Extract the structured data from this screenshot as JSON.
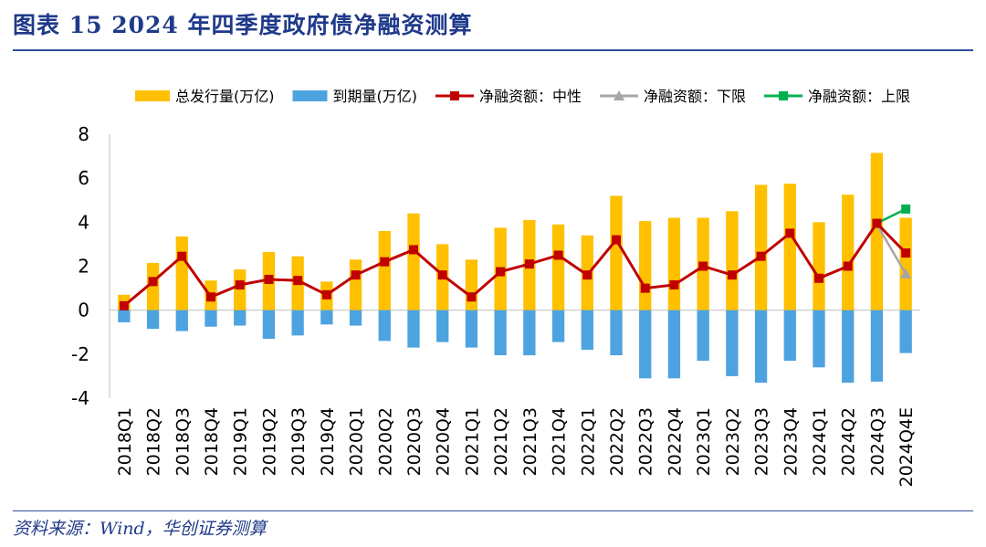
{
  "title": "图表 15   2024 年四季度政府债净融资测算",
  "source": "资料来源：Wind，华创证券测算",
  "chart_data": {
    "type": "bar",
    "categories": [
      "2018Q1",
      "2018Q2",
      "2018Q3",
      "2018Q4",
      "2019Q1",
      "2019Q2",
      "2019Q3",
      "2019Q4",
      "2020Q1",
      "2020Q2",
      "2020Q3",
      "2020Q4",
      "2021Q1",
      "2021Q2",
      "2021Q3",
      "2021Q4",
      "2022Q1",
      "2022Q2",
      "2022Q3",
      "2022Q4",
      "2023Q1",
      "2023Q2",
      "2023Q3",
      "2023Q4",
      "2024Q1",
      "2024Q2",
      "2024Q3",
      "2024Q4E"
    ],
    "ylim": [
      -4,
      8
    ],
    "yticks": [
      -4,
      -2,
      0,
      2,
      4,
      6,
      8
    ],
    "legend_position": "top",
    "series": [
      {
        "name": "总发行量(万亿)",
        "kind": "bar",
        "color": "#FFC000",
        "values": [
          0.7,
          2.15,
          3.35,
          1.35,
          1.85,
          2.65,
          2.45,
          1.3,
          2.3,
          3.6,
          4.4,
          3.0,
          2.3,
          3.75,
          4.1,
          3.9,
          3.4,
          5.2,
          4.05,
          4.2,
          4.2,
          4.5,
          5.7,
          5.75,
          4.0,
          5.25,
          7.15,
          4.2
        ]
      },
      {
        "name": "到期量(万亿)",
        "kind": "bar",
        "color": "#4DA3E0",
        "values": [
          -0.55,
          -0.85,
          -0.95,
          -0.75,
          -0.7,
          -1.3,
          -1.15,
          -0.65,
          -0.7,
          -1.4,
          -1.7,
          -1.45,
          -1.7,
          -2.05,
          -2.05,
          -1.45,
          -1.8,
          -2.05,
          -3.1,
          -3.1,
          -2.3,
          -3.0,
          -3.3,
          -2.3,
          -2.6,
          -3.3,
          -3.25,
          -1.95
        ]
      },
      {
        "name": "净融资额：中性",
        "kind": "line",
        "color": "#C00000",
        "marker": "square",
        "values": [
          0.2,
          1.3,
          2.45,
          0.6,
          1.15,
          1.4,
          1.35,
          0.7,
          1.6,
          2.2,
          2.75,
          1.6,
          0.6,
          1.75,
          2.1,
          2.5,
          1.6,
          3.2,
          1.0,
          1.15,
          2.0,
          1.6,
          2.45,
          3.5,
          1.45,
          2.0,
          3.95,
          2.6
        ]
      },
      {
        "name": "净融资额：下限",
        "kind": "line",
        "color": "#A6A6A6",
        "marker": "triangle",
        "points": [
          {
            "x": "2024Q3",
            "y": 3.9
          },
          {
            "x": "2024Q4E",
            "y": 1.65
          }
        ]
      },
      {
        "name": "净融资额：上限",
        "kind": "line",
        "color": "#00B050",
        "marker": "square",
        "points": [
          {
            "x": "2024Q3",
            "y": 3.95
          },
          {
            "x": "2024Q4E",
            "y": 4.6
          }
        ]
      }
    ]
  }
}
